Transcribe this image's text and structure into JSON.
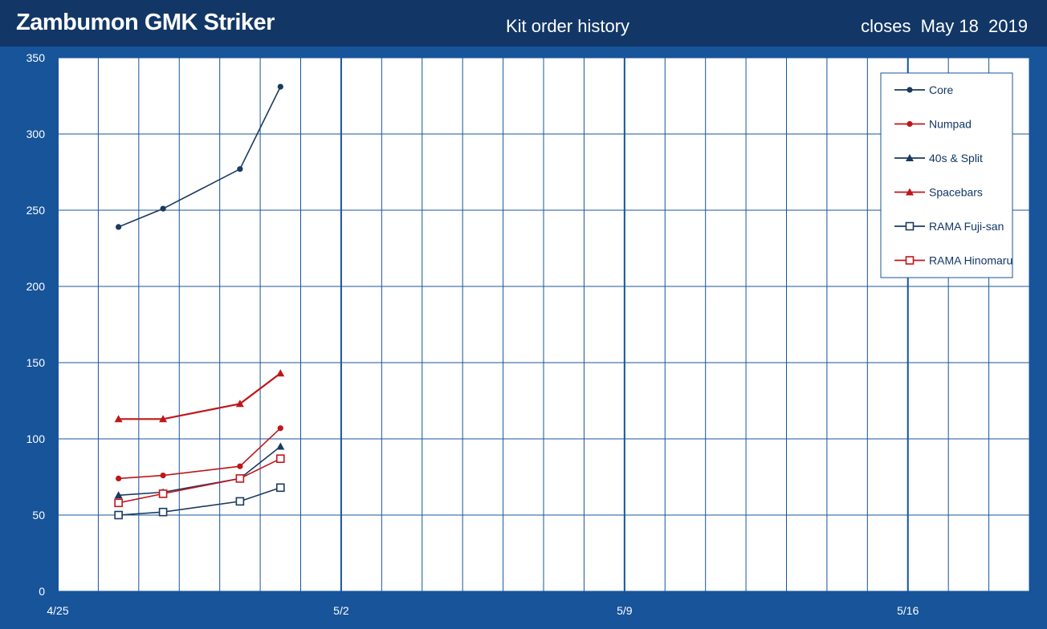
{
  "header": {
    "title": "Zambumon GMK Striker",
    "subtitle": "Kit order history",
    "closes": "closes  May 18  2019"
  },
  "colors": {
    "background": "#17549a",
    "header": "#123766",
    "plot_bg": "#ffffff",
    "grid": "#17549a",
    "navy": "#1a3a5e",
    "red": "#c0161b"
  },
  "chart_data": {
    "type": "line",
    "title": "",
    "xlabel": "",
    "ylabel": "",
    "x_ticks": [
      {
        "day": 0,
        "label": "4/25"
      },
      {
        "day": 7,
        "label": "5/2"
      },
      {
        "day": 14,
        "label": "5/9"
      },
      {
        "day": 21,
        "label": "5/16"
      }
    ],
    "x_grid_minor_every_days": 1,
    "xlim_days_from_apr25": [
      0,
      24
    ],
    "ylim": [
      0,
      350
    ],
    "y_ticks": [
      0,
      50,
      100,
      150,
      200,
      250,
      300,
      350
    ],
    "x_dates": [
      "2019-04-26",
      "2019-04-27",
      "2019-04-29",
      "2019-04-30"
    ],
    "x_days_from_apr25": [
      1.5,
      2.6,
      4.5,
      5.5
    ],
    "series": [
      {
        "name": "Core",
        "color": "#1a3a5e",
        "marker": "circle",
        "values": [
          239,
          251,
          277,
          331
        ]
      },
      {
        "name": "Numpad",
        "color": "#c0161b",
        "marker": "circle",
        "values": [
          74,
          76,
          82,
          107
        ]
      },
      {
        "name": "40s & Split",
        "color": "#1a3a5e",
        "marker": "triangle",
        "values": [
          63,
          65,
          74,
          95
        ]
      },
      {
        "name": "Spacebars",
        "color": "#c0161b",
        "marker": "triangle",
        "values": [
          113,
          113,
          123,
          143
        ]
      },
      {
        "name": "RAMA Fuji-san",
        "color": "#1a3a5e",
        "marker": "square",
        "values": [
          50,
          52,
          59,
          68
        ]
      },
      {
        "name": "RAMA Hinomaru",
        "color": "#c0161b",
        "marker": "square",
        "values": [
          58,
          64,
          74,
          87
        ]
      }
    ],
    "legend_position": "top-right",
    "grid": true
  }
}
